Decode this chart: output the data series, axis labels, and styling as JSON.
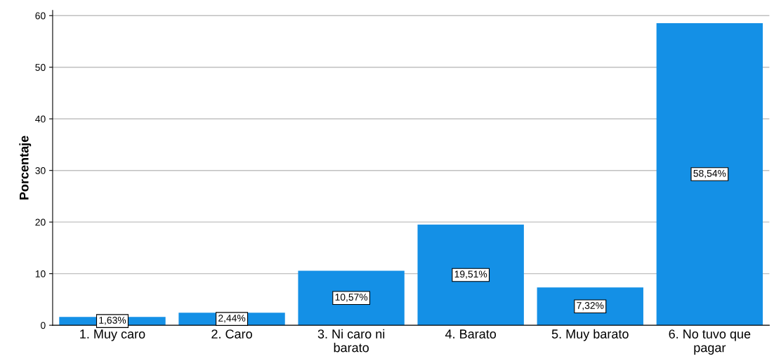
{
  "chart_data": {
    "type": "bar",
    "ylabel": "Porcentaje",
    "categories": [
      "1. Muy caro",
      "2. Caro",
      "3. Ni caro ni\nbarato",
      "4. Barato",
      "5. Muy barato",
      "6. No tuvo que\npagar"
    ],
    "values": [
      1.63,
      2.44,
      10.57,
      19.51,
      7.32,
      58.54
    ],
    "value_labels": [
      "1,63%",
      "2,44%",
      "10,57%",
      "19,51%",
      "7,32%",
      "58,54%"
    ],
    "color": "#1490e6",
    "ylim": [
      0,
      61
    ],
    "yticks": [
      0,
      10,
      20,
      30,
      40,
      50,
      60
    ],
    "grid": "y",
    "legend": false
  }
}
